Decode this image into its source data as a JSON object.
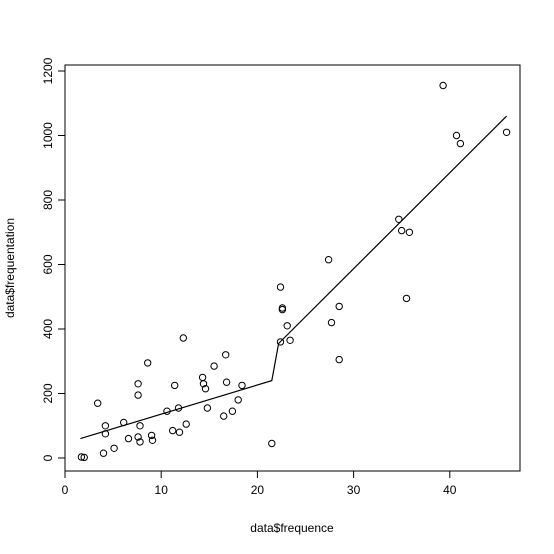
{
  "chart_data": {
    "type": "scatter",
    "xlabel": "data$frequence",
    "ylabel": "data$frequentation",
    "xlim": [
      0,
      47
    ],
    "ylim": [
      -40,
      1200
    ],
    "x_ticks": [
      "0",
      "10",
      "20",
      "30",
      "40"
    ],
    "y_ticks": [
      "0",
      "200",
      "400",
      "600",
      "800",
      "1000",
      "1200"
    ],
    "grid": false,
    "legend": "none",
    "series": [
      {
        "kind": "points",
        "marker": "open-circle",
        "points": [
          [
            1.7,
            3
          ],
          [
            2.0,
            2
          ],
          [
            3.4,
            170
          ],
          [
            4.0,
            15
          ],
          [
            4.2,
            75
          ],
          [
            4.2,
            100
          ],
          [
            5.1,
            30
          ],
          [
            6.1,
            110
          ],
          [
            6.6,
            60
          ],
          [
            7.6,
            230
          ],
          [
            7.6,
            195
          ],
          [
            7.6,
            65
          ],
          [
            7.8,
            50
          ],
          [
            7.8,
            100
          ],
          [
            8.6,
            295
          ],
          [
            9.0,
            70
          ],
          [
            9.1,
            55
          ],
          [
            10.6,
            145
          ],
          [
            11.2,
            85
          ],
          [
            11.4,
            225
          ],
          [
            11.8,
            155
          ],
          [
            11.9,
            80
          ],
          [
            12.3,
            372
          ],
          [
            12.6,
            105
          ],
          [
            14.3,
            250
          ],
          [
            14.4,
            230
          ],
          [
            14.6,
            215
          ],
          [
            14.8,
            155
          ],
          [
            15.5,
            285
          ],
          [
            16.5,
            130
          ],
          [
            16.7,
            320
          ],
          [
            16.8,
            235
          ],
          [
            17.4,
            145
          ],
          [
            18.0,
            180
          ],
          [
            18.4,
            225
          ],
          [
            21.5,
            45
          ],
          [
            22.4,
            530
          ],
          [
            22.4,
            360
          ],
          [
            22.6,
            465
          ],
          [
            22.6,
            460
          ],
          [
            23.1,
            410
          ],
          [
            23.4,
            365
          ],
          [
            27.4,
            615
          ],
          [
            27.7,
            420
          ],
          [
            28.5,
            470
          ],
          [
            28.5,
            305
          ],
          [
            34.7,
            740
          ],
          [
            35.0,
            705
          ],
          [
            35.5,
            495
          ],
          [
            35.8,
            700
          ],
          [
            39.3,
            1155
          ],
          [
            40.7,
            1000
          ],
          [
            41.1,
            975
          ],
          [
            45.9,
            1010
          ]
        ]
      },
      {
        "kind": "line",
        "points": [
          [
            1.6,
            60
          ],
          [
            21.5,
            240
          ],
          [
            22.2,
            355
          ],
          [
            45.9,
            1060
          ]
        ]
      }
    ]
  }
}
